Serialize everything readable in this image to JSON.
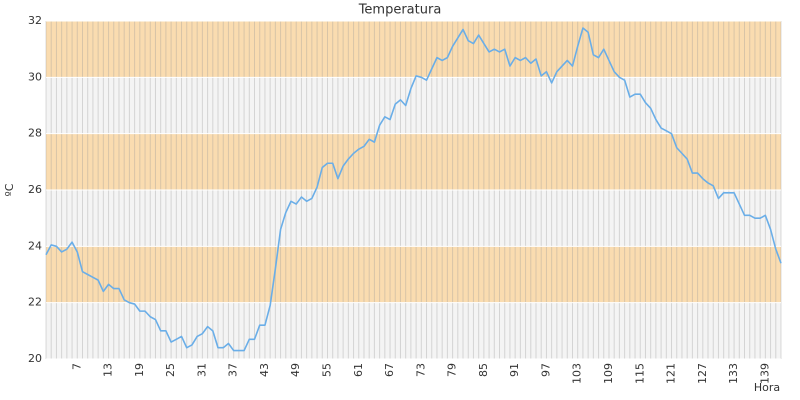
{
  "chart_data": {
    "type": "line",
    "title": "Temperatura",
    "x_label": "Hora",
    "y_label": "ºC",
    "categories": [
      null,
      null,
      null,
      null,
      null,
      null,
      "7",
      null,
      null,
      null,
      null,
      null,
      "13",
      null,
      null,
      null,
      null,
      null,
      "19",
      null,
      null,
      null,
      null,
      null,
      "25",
      null,
      null,
      null,
      null,
      null,
      "31",
      null,
      null,
      null,
      null,
      null,
      "37",
      null,
      null,
      null,
      null,
      null,
      "43",
      null,
      null,
      null,
      null,
      null,
      "49",
      null,
      null,
      null,
      null,
      null,
      "55",
      null,
      null,
      null,
      null,
      null,
      "61",
      null,
      null,
      null,
      null,
      null,
      "67",
      null,
      null,
      null,
      null,
      null,
      "73",
      null,
      null,
      null,
      null,
      null,
      "79",
      null,
      null,
      null,
      null,
      null,
      "85",
      null,
      null,
      null,
      null,
      null,
      "91",
      null,
      null,
      null,
      null,
      null,
      "97",
      null,
      null,
      null,
      null,
      null,
      "103",
      null,
      null,
      null,
      null,
      null,
      "109",
      null,
      null,
      null,
      null,
      null,
      "115",
      null,
      null,
      null,
      null,
      null,
      "121",
      null,
      null,
      null,
      null,
      null,
      "127",
      null,
      null,
      null,
      null,
      null,
      "133",
      null,
      null,
      null,
      null,
      null,
      "139",
      null,
      null,
      null
    ],
    "series": [
      {
        "name": "Temperatura",
        "color": "#6aaee8",
        "values": [
          23.7,
          24.05,
          24.0,
          23.8,
          23.9,
          24.15,
          23.8,
          23.1,
          23.0,
          22.9,
          22.8,
          22.4,
          22.65,
          22.5,
          22.5,
          22.1,
          22.0,
          21.95,
          21.7,
          21.7,
          21.5,
          21.4,
          21.0,
          21.0,
          20.6,
          20.7,
          20.8,
          20.4,
          20.5,
          20.8,
          20.9,
          21.15,
          21.0,
          20.4,
          20.4,
          20.55,
          20.3,
          20.3,
          20.3,
          20.7,
          20.7,
          21.2,
          21.2,
          21.9,
          23.2,
          24.6,
          25.2,
          25.6,
          25.5,
          25.75,
          25.6,
          25.7,
          26.1,
          26.8,
          26.95,
          26.95,
          26.4,
          26.85,
          27.1,
          27.3,
          27.45,
          27.55,
          27.8,
          27.7,
          28.3,
          28.6,
          28.5,
          29.05,
          29.2,
          29.0,
          29.6,
          30.05,
          30.0,
          29.9,
          30.3,
          30.7,
          30.6,
          30.7,
          31.1,
          31.4,
          31.7,
          31.3,
          31.2,
          31.5,
          31.2,
          30.9,
          31.0,
          30.9,
          31.0,
          30.4,
          30.7,
          30.6,
          30.7,
          30.5,
          30.65,
          30.05,
          30.2,
          29.8,
          30.2,
          30.4,
          30.6,
          30.4,
          31.1,
          31.75,
          31.6,
          30.8,
          30.7,
          31.0,
          30.6,
          30.2,
          30.0,
          29.9,
          29.3,
          29.4,
          29.4,
          29.1,
          28.9,
          28.5,
          28.2,
          28.1,
          28.0,
          27.5,
          27.3,
          27.1,
          26.6,
          26.6,
          26.4,
          26.25,
          26.15,
          25.7,
          25.9,
          25.9,
          25.9,
          25.5,
          25.1,
          25.1,
          25.0,
          25.0,
          25.1,
          24.6,
          23.9,
          23.4
        ]
      }
    ],
    "ylim": [
      20,
      32
    ],
    "yticks": [
      20,
      22,
      24,
      26,
      28,
      30,
      32
    ],
    "bands": [
      [
        22,
        24
      ],
      [
        26,
        28
      ],
      [
        30,
        32
      ]
    ],
    "band_color": "#fadcb0",
    "background": "#f4f4f4",
    "grid": true
  }
}
